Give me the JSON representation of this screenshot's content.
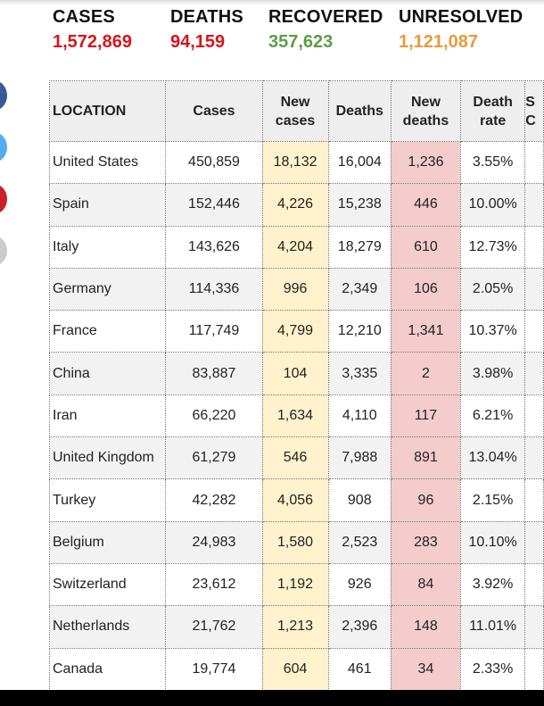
{
  "summary": [
    {
      "label": "CASES",
      "value": "1,572,869",
      "color": "#d9141b"
    },
    {
      "label": "DEATHS",
      "value": "94,159",
      "color": "#d9141b"
    },
    {
      "label": "RECOVERED",
      "value": "357,623",
      "color": "#5a9e46"
    },
    {
      "label": "UNRESOLVED",
      "value": "1,121,087",
      "color": "#e69a3c"
    }
  ],
  "social_colors": [
    "#3b5998",
    "#55acee",
    "#cb2027",
    "#cccccc"
  ],
  "table": {
    "headers": [
      "LOCATION",
      "Cases",
      "New cases",
      "Deaths",
      "New deaths",
      "Death rate",
      "S C"
    ],
    "rows": [
      [
        "United States",
        "450,859",
        "18,132",
        "16,004",
        "1,236",
        "3.55%"
      ],
      [
        "Spain",
        "152,446",
        "4,226",
        "15,238",
        "446",
        "10.00%"
      ],
      [
        "Italy",
        "143,626",
        "4,204",
        "18,279",
        "610",
        "12.73%"
      ],
      [
        "Germany",
        "114,336",
        "996",
        "2,349",
        "106",
        "2.05%"
      ],
      [
        "France",
        "117,749",
        "4,799",
        "12,210",
        "1,341",
        "10.37%"
      ],
      [
        "China",
        "83,887",
        "104",
        "3,335",
        "2",
        "3.98%"
      ],
      [
        "Iran",
        "66,220",
        "1,634",
        "4,110",
        "117",
        "6.21%"
      ],
      [
        "United Kingdom",
        "61,279",
        "546",
        "7,988",
        "891",
        "13.04%"
      ],
      [
        "Turkey",
        "42,282",
        "4,056",
        "908",
        "96",
        "2.15%"
      ],
      [
        "Belgium",
        "24,983",
        "1,580",
        "2,523",
        "283",
        "10.10%"
      ],
      [
        "Switzerland",
        "23,612",
        "1,192",
        "926",
        "84",
        "3.92%"
      ],
      [
        "Netherlands",
        "21,762",
        "1,213",
        "2,396",
        "148",
        "11.01%"
      ],
      [
        "Canada",
        "19,774",
        "604",
        "461",
        "34",
        "2.33%"
      ]
    ]
  }
}
